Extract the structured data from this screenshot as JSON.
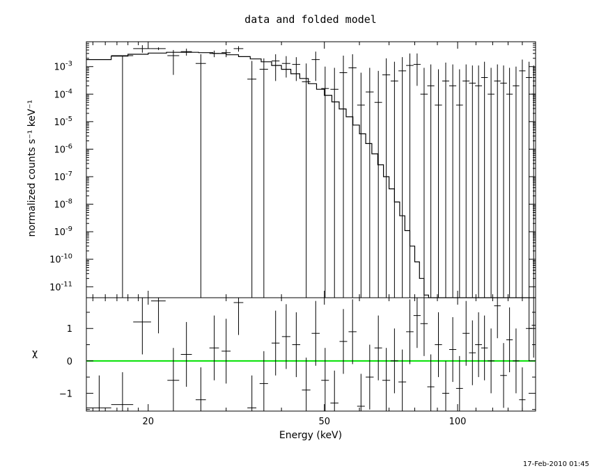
{
  "chart_data": [
    {
      "type": "scatter",
      "panel": "spectrum",
      "title": "data and folded model",
      "xlabel": "",
      "ylabel": "normalized counts s⁻¹ keV⁻¹",
      "xscale": "log",
      "yscale": "log",
      "xlim": [
        14.5,
        150
      ],
      "ylim": [
        4e-12,
        0.008
      ],
      "yticks": [
        {
          "value": 0.001,
          "mantissa": "10",
          "exp": "-3"
        },
        {
          "value": 0.0001,
          "mantissa": "10",
          "exp": "-4"
        },
        {
          "value": 1e-05,
          "mantissa": "10",
          "exp": "-5"
        },
        {
          "value": 1e-06,
          "mantissa": "10",
          "exp": "-6"
        },
        {
          "value": 1e-07,
          "mantissa": "10",
          "exp": "-7"
        },
        {
          "value": 1e-08,
          "mantissa": "10",
          "exp": "-8"
        },
        {
          "value": 1e-09,
          "mantissa": "10",
          "exp": "-9"
        },
        {
          "value": 1e-10,
          "mantissa": "10",
          "exp": "-10"
        },
        {
          "value": 1e-11,
          "mantissa": "10",
          "exp": "-11"
        }
      ],
      "grid": false,
      "data_points": [
        {
          "x": 17.5,
          "dxlo": 1.0,
          "dxhi": 1.0,
          "y": 0.0025,
          "ylo": 4e-12,
          "yhi": 0.0025
        },
        {
          "x": 19.4,
          "dxlo": 0.9,
          "dxhi": 0.9,
          "y": 0.0045,
          "ylo": 0.0032,
          "yhi": 0.006
        },
        {
          "x": 21.1,
          "dxlo": 0.8,
          "dxhi": 0.8,
          "y": 0.0045,
          "ylo": 0.004,
          "yhi": 0.005
        },
        {
          "x": 22.8,
          "dxlo": 0.7,
          "dxhi": 0.7,
          "y": 0.0025,
          "ylo": 0.0005,
          "yhi": 0.004
        },
        {
          "x": 24.4,
          "dxlo": 0.7,
          "dxhi": 0.7,
          "y": 0.0035,
          "ylo": 0.0025,
          "yhi": 0.0045
        },
        {
          "x": 26.3,
          "dxlo": 0.7,
          "dxhi": 0.7,
          "y": 0.0013,
          "ylo": 4e-12,
          "yhi": 0.0028
        },
        {
          "x": 28.2,
          "dxlo": 0.7,
          "dxhi": 0.7,
          "y": 0.003,
          "ylo": 0.0022,
          "yhi": 0.0038
        },
        {
          "x": 30.0,
          "dxlo": 0.7,
          "dxhi": 0.7,
          "y": 0.0032,
          "ylo": 0.0022,
          "yhi": 0.0042
        },
        {
          "x": 32.0,
          "dxlo": 0.8,
          "dxhi": 0.8,
          "y": 0.0045,
          "ylo": 0.0035,
          "yhi": 0.0055
        },
        {
          "x": 34.3,
          "dxlo": 0.8,
          "dxhi": 0.8,
          "y": 0.00035,
          "ylo": 4e-12,
          "yhi": 0.0016
        },
        {
          "x": 36.5,
          "dxlo": 0.8,
          "dxhi": 0.8,
          "y": 0.0008,
          "ylo": 4e-12,
          "yhi": 0.002
        },
        {
          "x": 38.8,
          "dxlo": 0.8,
          "dxhi": 0.8,
          "y": 0.0016,
          "ylo": 0.0003,
          "yhi": 0.0028
        },
        {
          "x": 41.0,
          "dxlo": 0.9,
          "dxhi": 0.9,
          "y": 0.0013,
          "ylo": 0.0004,
          "yhi": 0.0024
        },
        {
          "x": 43.2,
          "dxlo": 0.9,
          "dxhi": 0.9,
          "y": 0.0012,
          "ylo": 0.0003,
          "yhi": 0.0022
        },
        {
          "x": 45.5,
          "dxlo": 1.0,
          "dxhi": 1.0,
          "y": 0.00028,
          "ylo": 4e-12,
          "yhi": 0.0013
        },
        {
          "x": 47.8,
          "dxlo": 1.0,
          "dxhi": 1.0,
          "y": 0.0018,
          "ylo": 0.0003,
          "yhi": 0.0035
        },
        {
          "x": 50.2,
          "dxlo": 1.0,
          "dxhi": 1.0,
          "y": 0.00016,
          "ylo": 4e-12,
          "yhi": 0.001
        },
        {
          "x": 52.7,
          "dxlo": 1.1,
          "dxhi": 1.1,
          "y": 0.00015,
          "ylo": 4e-12,
          "yhi": 0.0009
        },
        {
          "x": 55.2,
          "dxlo": 1.1,
          "dxhi": 1.1,
          "y": 0.0006,
          "ylo": 4e-12,
          "yhi": 0.0025
        },
        {
          "x": 57.9,
          "dxlo": 1.2,
          "dxhi": 1.2,
          "y": 0.0009,
          "ylo": 4e-12,
          "yhi": 0.0028
        },
        {
          "x": 60.5,
          "dxlo": 1.2,
          "dxhi": 1.2,
          "y": 4e-05,
          "ylo": 4e-12,
          "yhi": 0.0006
        },
        {
          "x": 63.3,
          "dxlo": 1.3,
          "dxhi": 1.3,
          "y": 0.00012,
          "ylo": 4e-12,
          "yhi": 0.0009
        },
        {
          "x": 66.2,
          "dxlo": 1.3,
          "dxhi": 1.3,
          "y": 5e-05,
          "ylo": 4e-12,
          "yhi": 0.0007
        },
        {
          "x": 69.0,
          "dxlo": 1.4,
          "dxhi": 1.4,
          "y": 0.0005,
          "ylo": 4e-12,
          "yhi": 0.002
        },
        {
          "x": 72.0,
          "dxlo": 1.4,
          "dxhi": 1.4,
          "y": 0.0003,
          "ylo": 4e-12,
          "yhi": 0.0015
        },
        {
          "x": 75.0,
          "dxlo": 1.5,
          "dxhi": 1.5,
          "y": 0.0007,
          "ylo": 4e-12,
          "yhi": 0.0022
        },
        {
          "x": 78.0,
          "dxlo": 1.5,
          "dxhi": 1.5,
          "y": 0.0011,
          "ylo": 4e-12,
          "yhi": 0.003
        },
        {
          "x": 81.0,
          "dxlo": 1.5,
          "dxhi": 1.5,
          "y": 0.0012,
          "ylo": 0.0002,
          "yhi": 0.003
        },
        {
          "x": 84.0,
          "dxlo": 1.6,
          "dxhi": 1.6,
          "y": 0.0001,
          "ylo": 4e-12,
          "yhi": 0.0009
        },
        {
          "x": 87.0,
          "dxlo": 1.6,
          "dxhi": 1.6,
          "y": 0.0002,
          "ylo": 4e-12,
          "yhi": 0.0012
        },
        {
          "x": 90.5,
          "dxlo": 1.7,
          "dxhi": 1.7,
          "y": 4e-05,
          "ylo": 4e-12,
          "yhi": 0.0008
        },
        {
          "x": 94.0,
          "dxlo": 1.7,
          "dxhi": 1.7,
          "y": 0.0003,
          "ylo": 4e-12,
          "yhi": 0.0014
        },
        {
          "x": 97.5,
          "dxlo": 1.8,
          "dxhi": 1.8,
          "y": 0.0002,
          "ylo": 4e-12,
          "yhi": 0.0012
        },
        {
          "x": 101.0,
          "dxlo": 1.8,
          "dxhi": 1.8,
          "y": 4e-05,
          "ylo": 4e-12,
          "yhi": 0.0008
        },
        {
          "x": 104.5,
          "dxlo": 1.9,
          "dxhi": 1.9,
          "y": 0.0003,
          "ylo": 4e-12,
          "yhi": 0.0012
        },
        {
          "x": 108.0,
          "dxlo": 1.9,
          "dxhi": 1.9,
          "y": 0.00025,
          "ylo": 4e-12,
          "yhi": 0.0011
        },
        {
          "x": 111.5,
          "dxlo": 2.0,
          "dxhi": 2.0,
          "y": 0.0002,
          "ylo": 4e-12,
          "yhi": 0.0011
        },
        {
          "x": 115.0,
          "dxlo": 2.0,
          "dxhi": 2.0,
          "y": 0.0004,
          "ylo": 4e-12,
          "yhi": 0.0015
        },
        {
          "x": 119.0,
          "dxlo": 2.1,
          "dxhi": 2.1,
          "y": 0.0001,
          "ylo": 4e-12,
          "yhi": 0.0009
        },
        {
          "x": 123.0,
          "dxlo": 2.1,
          "dxhi": 2.1,
          "y": 0.0003,
          "ylo": 4e-12,
          "yhi": 0.0012
        },
        {
          "x": 127.0,
          "dxlo": 2.2,
          "dxhi": 2.2,
          "y": 0.00025,
          "ylo": 4e-12,
          "yhi": 0.0011
        },
        {
          "x": 131.0,
          "dxlo": 2.2,
          "dxhi": 2.2,
          "y": 0.0001,
          "ylo": 4e-12,
          "yhi": 0.0009
        },
        {
          "x": 135.5,
          "dxlo": 2.3,
          "dxhi": 2.3,
          "y": 0.0002,
          "ylo": 4e-12,
          "yhi": 0.001
        },
        {
          "x": 140.0,
          "dxlo": 2.3,
          "dxhi": 2.3,
          "y": 0.0007,
          "ylo": 4e-12,
          "yhi": 0.0018
        },
        {
          "x": 145.0,
          "dxlo": 2.4,
          "dxhi": 2.4,
          "y": 0.0004,
          "ylo": 4e-12,
          "yhi": 0.0015
        },
        {
          "x": 148.5,
          "dxlo": 1.5,
          "dxhi": 1.5,
          "y": 0.0001,
          "ylo": 4e-12,
          "yhi": 0.0011
        }
      ],
      "model": {
        "x": [
          14.5,
          16.5,
          18.0,
          20.0,
          22.0,
          24.0,
          26.0,
          28.0,
          30.0,
          32.0,
          34.0,
          36.0,
          38.0,
          40.0,
          42.0,
          44.0,
          46.0,
          48.0,
          50.0,
          52.0,
          54.0,
          56.0,
          58.0,
          60.0,
          62.0,
          64.0,
          66.0,
          68.0,
          70.0,
          72.0,
          74.0,
          76.0,
          78.0,
          80.0,
          82.0,
          84.0,
          86.0,
          88.0,
          90.0,
          92.0,
          94.0,
          96.0,
          98.0,
          100.0,
          103.0,
          106.0,
          109.0,
          112.0,
          115.0,
          118.0,
          121.0,
          124.0,
          127.0,
          130.0,
          133.0,
          136.0,
          139.0,
          142.0,
          145.0,
          148.0,
          150.0
        ],
        "y": [
          0.0018,
          0.0024,
          0.0028,
          0.0031,
          0.0033,
          0.0033,
          0.0032,
          0.003,
          0.0027,
          0.0023,
          0.0019,
          0.0015,
          0.0011,
          0.0008,
          0.00055,
          0.00037,
          0.00024,
          0.00015,
          9e-05,
          5.2e-05,
          2.9e-05,
          1.5e-05,
          7.5e-06,
          3.6e-06,
          1.6e-06,
          6.8e-07,
          2.7e-07,
          1e-07,
          3.6e-08,
          1.2e-08,
          3.8e-09,
          1.1e-09,
          3e-10,
          8e-11,
          2e-11,
          5e-12,
          4e-12,
          4e-12,
          4e-12,
          4e-12,
          4e-12,
          4e-12,
          4e-12,
          4e-12,
          4e-12,
          4e-12,
          4e-12,
          4e-12,
          4e-12,
          4e-12,
          4e-12,
          4e-12,
          4e-12,
          4e-12,
          4e-12,
          4e-12,
          4e-12,
          4e-12,
          4e-12,
          4e-12,
          4e-12
        ]
      }
    },
    {
      "type": "scatter",
      "panel": "residuals",
      "xlabel": "Energy (keV)",
      "ylabel": "χ",
      "xscale": "log",
      "xlim": [
        14.5,
        150
      ],
      "ylim": [
        -1.55,
        1.95
      ],
      "xticks": [
        20,
        50,
        100
      ],
      "yticks": [
        -1,
        0,
        1
      ],
      "zero_line_color": "#00e000",
      "grid": false,
      "data_points": [
        {
          "x": 15.5,
          "dxlo": 1.0,
          "dxhi": 1.0,
          "y": -1.45,
          "err": 1.0
        },
        {
          "x": 17.5,
          "dxlo": 1.0,
          "dxhi": 1.0,
          "y": -1.35,
          "err": 1.0
        },
        {
          "x": 19.4,
          "dxlo": 0.9,
          "dxhi": 0.9,
          "y": 1.2,
          "err": 1.0
        },
        {
          "x": 21.1,
          "dxlo": 0.8,
          "dxhi": 0.8,
          "y": 1.85,
          "err": 1.0
        },
        {
          "x": 22.8,
          "dxlo": 0.7,
          "dxhi": 0.7,
          "y": -0.6,
          "err": 1.0
        },
        {
          "x": 24.4,
          "dxlo": 0.7,
          "dxhi": 0.7,
          "y": 0.2,
          "err": 1.0
        },
        {
          "x": 26.3,
          "dxlo": 0.7,
          "dxhi": 0.7,
          "y": -1.2,
          "err": 1.0
        },
        {
          "x": 28.2,
          "dxlo": 0.7,
          "dxhi": 0.7,
          "y": 0.4,
          "err": 1.0
        },
        {
          "x": 30.0,
          "dxlo": 0.7,
          "dxhi": 0.7,
          "y": 0.3,
          "err": 1.0
        },
        {
          "x": 32.0,
          "dxlo": 0.8,
          "dxhi": 0.8,
          "y": 1.8,
          "err": 1.0
        },
        {
          "x": 34.3,
          "dxlo": 0.8,
          "dxhi": 0.8,
          "y": -1.45,
          "err": 1.0
        },
        {
          "x": 36.5,
          "dxlo": 0.8,
          "dxhi": 0.8,
          "y": -0.7,
          "err": 1.0
        },
        {
          "x": 38.8,
          "dxlo": 0.8,
          "dxhi": 0.8,
          "y": 0.55,
          "err": 1.0
        },
        {
          "x": 41.0,
          "dxlo": 0.9,
          "dxhi": 0.9,
          "y": 0.75,
          "err": 1.0
        },
        {
          "x": 43.2,
          "dxlo": 0.9,
          "dxhi": 0.9,
          "y": 0.5,
          "err": 1.0
        },
        {
          "x": 45.5,
          "dxlo": 1.0,
          "dxhi": 1.0,
          "y": -0.9,
          "err": 1.0
        },
        {
          "x": 47.8,
          "dxlo": 1.0,
          "dxhi": 1.0,
          "y": 0.85,
          "err": 1.0
        },
        {
          "x": 50.2,
          "dxlo": 1.0,
          "dxhi": 1.0,
          "y": -0.6,
          "err": 1.0
        },
        {
          "x": 52.7,
          "dxlo": 1.1,
          "dxhi": 1.1,
          "y": -1.3,
          "err": 1.0
        },
        {
          "x": 55.2,
          "dxlo": 1.1,
          "dxhi": 1.1,
          "y": 0.6,
          "err": 1.0
        },
        {
          "x": 57.9,
          "dxlo": 1.2,
          "dxhi": 1.2,
          "y": 0.9,
          "err": 1.0
        },
        {
          "x": 60.5,
          "dxlo": 1.2,
          "dxhi": 1.2,
          "y": -1.4,
          "err": 1.0
        },
        {
          "x": 63.3,
          "dxlo": 1.3,
          "dxhi": 1.3,
          "y": -0.5,
          "err": 1.0
        },
        {
          "x": 66.2,
          "dxlo": 1.3,
          "dxhi": 1.3,
          "y": 0.4,
          "err": 1.0
        },
        {
          "x": 69.0,
          "dxlo": 1.4,
          "dxhi": 1.4,
          "y": -0.6,
          "err": 1.0
        },
        {
          "x": 72.0,
          "dxlo": 1.4,
          "dxhi": 1.4,
          "y": 0.0,
          "err": 1.0
        },
        {
          "x": 75.0,
          "dxlo": 1.5,
          "dxhi": 1.5,
          "y": -0.65,
          "err": 1.0
        },
        {
          "x": 78.0,
          "dxlo": 1.5,
          "dxhi": 1.5,
          "y": 0.9,
          "err": 1.0
        },
        {
          "x": 81.0,
          "dxlo": 1.5,
          "dxhi": 1.5,
          "y": 1.4,
          "err": 1.0
        },
        {
          "x": 84.0,
          "dxlo": 1.6,
          "dxhi": 1.6,
          "y": 1.15,
          "err": 1.0
        },
        {
          "x": 87.0,
          "dxlo": 1.6,
          "dxhi": 1.6,
          "y": -0.8,
          "err": 1.0
        },
        {
          "x": 90.5,
          "dxlo": 1.7,
          "dxhi": 1.7,
          "y": 0.5,
          "err": 1.0
        },
        {
          "x": 94.0,
          "dxlo": 1.7,
          "dxhi": 1.7,
          "y": -1.0,
          "err": 1.0
        },
        {
          "x": 97.5,
          "dxlo": 1.8,
          "dxhi": 1.8,
          "y": 0.35,
          "err": 1.0
        },
        {
          "x": 101.0,
          "dxlo": 1.8,
          "dxhi": 1.8,
          "y": -0.85,
          "err": 1.0
        },
        {
          "x": 104.5,
          "dxlo": 1.9,
          "dxhi": 1.9,
          "y": 0.85,
          "err": 1.0
        },
        {
          "x": 108.0,
          "dxlo": 1.9,
          "dxhi": 1.9,
          "y": 0.25,
          "err": 1.0
        },
        {
          "x": 111.5,
          "dxlo": 2.0,
          "dxhi": 2.0,
          "y": 0.5,
          "err": 1.0
        },
        {
          "x": 115.0,
          "dxlo": 2.0,
          "dxhi": 2.0,
          "y": 0.4,
          "err": 1.0
        },
        {
          "x": 119.0,
          "dxlo": 2.1,
          "dxhi": 2.1,
          "y": 0.0,
          "err": 1.0
        },
        {
          "x": 123.0,
          "dxlo": 2.1,
          "dxhi": 2.1,
          "y": 1.7,
          "err": 1.0
        },
        {
          "x": 127.0,
          "dxlo": 2.2,
          "dxhi": 2.2,
          "y": -0.45,
          "err": 1.0
        },
        {
          "x": 131.0,
          "dxlo": 2.2,
          "dxhi": 2.2,
          "y": 0.65,
          "err": 1.0
        },
        {
          "x": 135.5,
          "dxlo": 2.3,
          "dxhi": 2.3,
          "y": 0.0,
          "err": 1.0
        },
        {
          "x": 140.0,
          "dxlo": 2.3,
          "dxhi": 2.3,
          "y": -1.2,
          "err": 1.0
        },
        {
          "x": 145.0,
          "dxlo": 2.4,
          "dxhi": 2.4,
          "y": 1.0,
          "err": 1.0
        },
        {
          "x": 148.5,
          "dxlo": 1.5,
          "dxhi": 1.5,
          "y": 1.1,
          "err": 1.0
        }
      ]
    }
  ],
  "footer": {
    "timestamp": "17-Feb-2010 01:45"
  }
}
